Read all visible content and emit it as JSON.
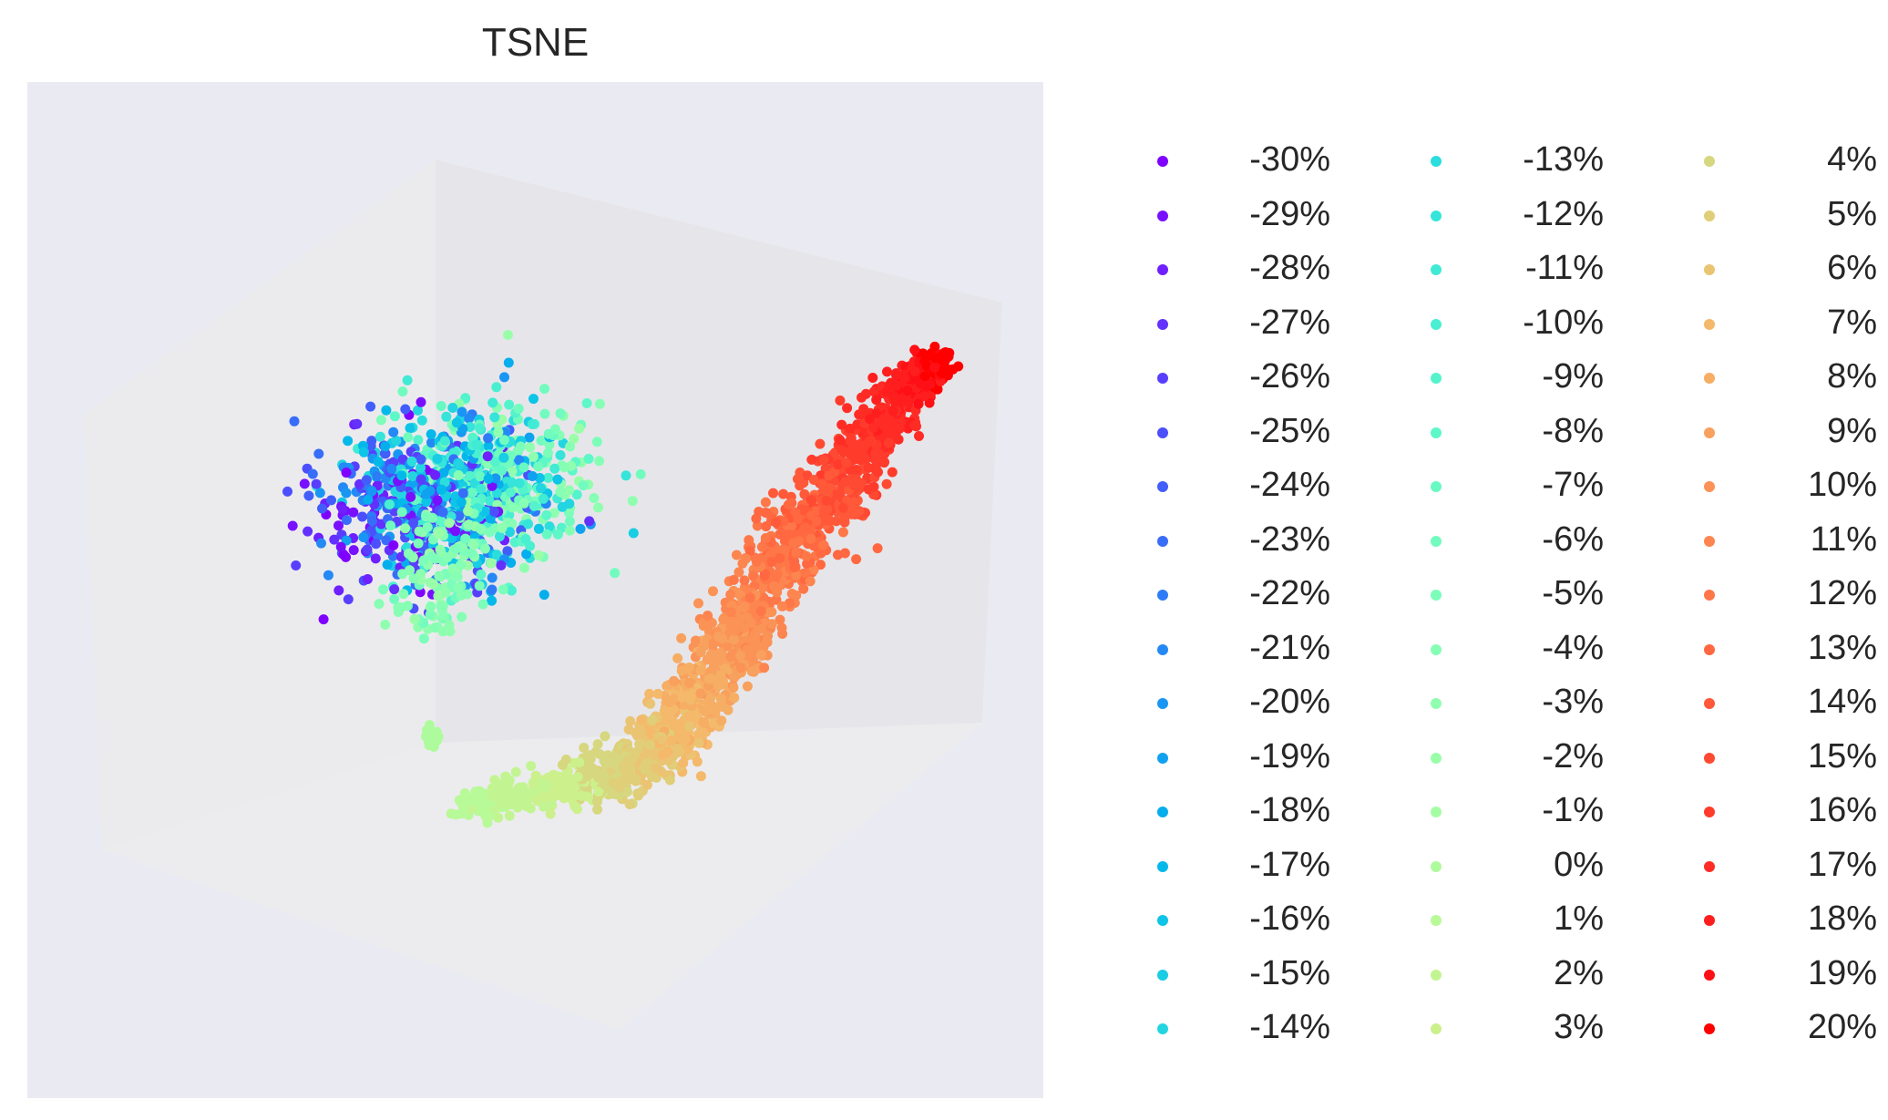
{
  "chart_data": {
    "type": "scatter",
    "title": "TSNE",
    "projection": "3d",
    "axis_ticks_shown": false,
    "grid": false,
    "legend_placement": "outside-right",
    "legend_columns": 3,
    "colormap": "rainbow",
    "series": [
      {
        "name": "-30%",
        "color": "#8000ff"
      },
      {
        "name": "-29%",
        "color": "#7810ff"
      },
      {
        "name": "-28%",
        "color": "#6e20fe"
      },
      {
        "name": "-27%",
        "color": "#6330fe"
      },
      {
        "name": "-26%",
        "color": "#583ffd"
      },
      {
        "name": "-25%",
        "color": "#4c4ffc"
      },
      {
        "name": "-24%",
        "color": "#425efa"
      },
      {
        "name": "-23%",
        "color": "#386df9"
      },
      {
        "name": "-22%",
        "color": "#2e7bf7"
      },
      {
        "name": "-21%",
        "color": "#2489f5"
      },
      {
        "name": "-20%",
        "color": "#1996f3"
      },
      {
        "name": "-19%",
        "color": "#10a2f0"
      },
      {
        "name": "-18%",
        "color": "#06aeed"
      },
      {
        "name": "-17%",
        "color": "#04b9ea"
      },
      {
        "name": "-16%",
        "color": "#0ec4e7"
      },
      {
        "name": "-15%",
        "color": "#18cde4"
      },
      {
        "name": "-14%",
        "color": "#22d5e0"
      },
      {
        "name": "-13%",
        "color": "#2cdddd"
      },
      {
        "name": "-12%",
        "color": "#36e4d9"
      },
      {
        "name": "-11%",
        "color": "#40ead5"
      },
      {
        "name": "-10%",
        "color": "#4aefd1"
      },
      {
        "name": "-9%",
        "color": "#54f3cc"
      },
      {
        "name": "-8%",
        "color": "#5ef7c8"
      },
      {
        "name": "-7%",
        "color": "#68f9c3"
      },
      {
        "name": "-6%",
        "color": "#72fbbe"
      },
      {
        "name": "-5%",
        "color": "#7cfdb9"
      },
      {
        "name": "-4%",
        "color": "#86feb4"
      },
      {
        "name": "-3%",
        "color": "#90feaf"
      },
      {
        "name": "-2%",
        "color": "#9afea9"
      },
      {
        "name": "-1%",
        "color": "#a4fda4"
      },
      {
        "name": "0%",
        "color": "#aefb9e"
      },
      {
        "name": "1%",
        "color": "#b8f998"
      },
      {
        "name": "2%",
        "color": "#c2f592"
      },
      {
        "name": "3%",
        "color": "#ccf08c"
      },
      {
        "name": "4%",
        "color": "#d6d77f"
      },
      {
        "name": "5%",
        "color": "#e0ce78"
      },
      {
        "name": "6%",
        "color": "#eac472"
      },
      {
        "name": "7%",
        "color": "#f4b96b"
      },
      {
        "name": "8%",
        "color": "#f6ad64"
      },
      {
        "name": "9%",
        "color": "#f8a05d"
      },
      {
        "name": "10%",
        "color": "#fb9356"
      },
      {
        "name": "11%",
        "color": "#fd854f"
      },
      {
        "name": "12%",
        "color": "#fe7748"
      },
      {
        "name": "13%",
        "color": "#ff6841"
      },
      {
        "name": "14%",
        "color": "#ff593a"
      },
      {
        "name": "15%",
        "color": "#ff4a33"
      },
      {
        "name": "16%",
        "color": "#ff3b2c"
      },
      {
        "name": "17%",
        "color": "#ff2c25"
      },
      {
        "name": "18%",
        "color": "#ff1e1e"
      },
      {
        "name": "19%",
        "color": "#ff0f16"
      },
      {
        "name": "20%",
        "color": "#ff0000"
      }
    ]
  }
}
